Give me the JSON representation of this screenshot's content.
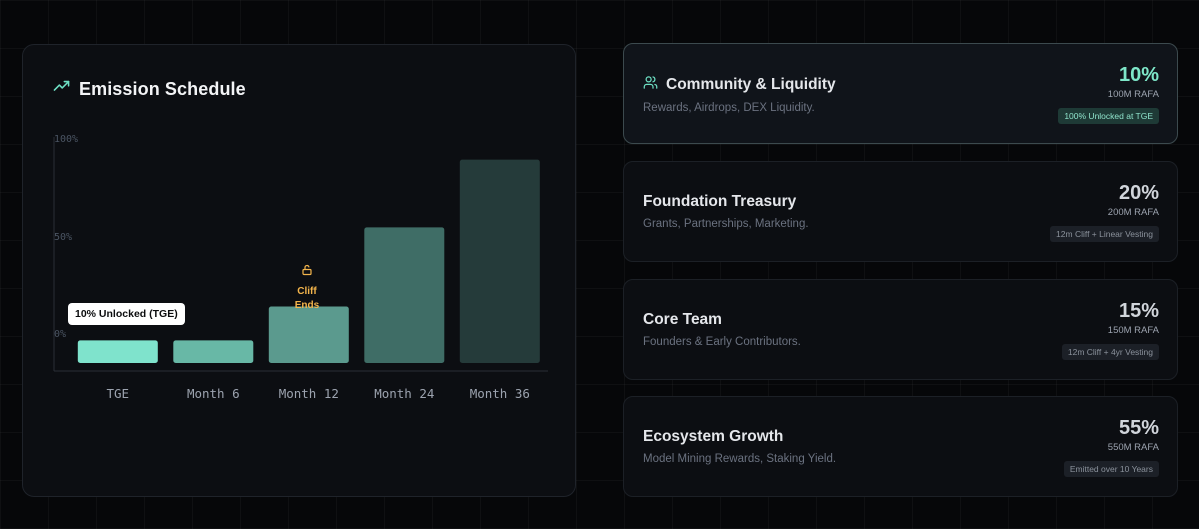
{
  "chart_card": {
    "title": "Emission Schedule",
    "title_icon": "trending-up-icon"
  },
  "chart_data": {
    "type": "bar",
    "title": "Emission Schedule",
    "categories": [
      "TGE",
      "Month 6",
      "Month 12",
      "Month 24",
      "Month 36"
    ],
    "values": [
      10,
      10,
      25,
      60,
      90
    ],
    "ylim": [
      0,
      100
    ],
    "yticks": [
      "0%",
      "50%",
      "100%"
    ],
    "colors": [
      "#7fe3cc",
      "#68b8a6",
      "#5b9a8e",
      "#3f6d66",
      "#253b3a"
    ],
    "annotations": {
      "tge": "10% Unlocked (TGE)",
      "cliff": "Cliff\nEnds"
    }
  },
  "allocations": [
    {
      "name": "Community & Liquidity",
      "desc": "Rewards, Airdrops, DEX Liquidity.",
      "pct": "10%",
      "amount": "100M RAFA",
      "badge": "100% Unlocked at TGE",
      "icon": "users-icon",
      "active": true
    },
    {
      "name": "Foundation Treasury",
      "desc": "Grants, Partnerships, Marketing.",
      "pct": "20%",
      "amount": "200M RAFA",
      "badge": "12m Cliff + Linear Vesting"
    },
    {
      "name": "Core Team",
      "desc": "Founders & Early Contributors.",
      "pct": "15%",
      "amount": "150M RAFA",
      "badge": "12m Cliff + 4yr Vesting"
    },
    {
      "name": "Ecosystem Growth",
      "desc": "Model Mining Rewards, Staking Yield.",
      "pct": "55%",
      "amount": "550M RAFA",
      "badge": "Emitted over 10 Years"
    }
  ]
}
